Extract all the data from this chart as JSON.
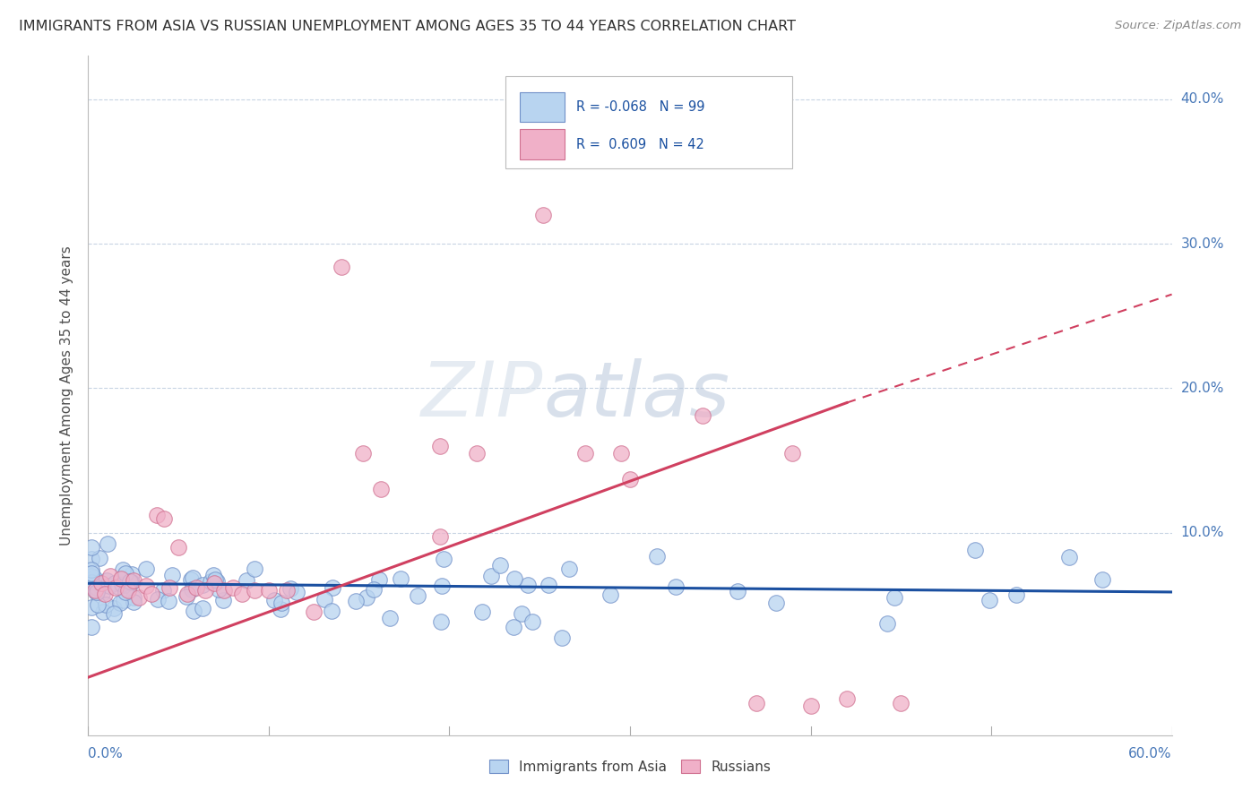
{
  "title": "IMMIGRANTS FROM ASIA VS RUSSIAN UNEMPLOYMENT AMONG AGES 35 TO 44 YEARS CORRELATION CHART",
  "source": "Source: ZipAtlas.com",
  "ylabel": "Unemployment Among Ages 35 to 44 years",
  "legend_bottom_asia": "Immigrants from Asia",
  "legend_bottom_russian": "Russians",
  "asia_face_color": "#b8d4f0",
  "asia_edge_color": "#7090c8",
  "russian_face_color": "#f0b0c8",
  "russian_edge_color": "#d07090",
  "asia_line_color": "#1a4fa0",
  "russian_line_color": "#d04060",
  "background_color": "#ffffff",
  "grid_color": "#c8d4e4",
  "title_color": "#303030",
  "axis_label_color": "#4878b8",
  "xlim": [
    0.0,
    0.6
  ],
  "ylim": [
    -0.04,
    0.43
  ],
  "ytick_values": [
    0.0,
    0.1,
    0.2,
    0.3,
    0.4
  ],
  "ytick_labels": [
    "",
    "10.0%",
    "20.0%",
    "30.0%",
    "40.0%"
  ],
  "xtick_positions": [
    0.0,
    0.1,
    0.2,
    0.3,
    0.4,
    0.5,
    0.6
  ],
  "asia_trend": [
    0.065,
    0.059
  ],
  "russian_trend_solid": [
    0.0,
    0.42,
    0.0,
    0.19
  ],
  "russian_trend_dash": [
    0.42,
    0.6,
    0.19,
    0.265
  ],
  "watermark_zip": "ZIP",
  "watermark_atlas": "atlas"
}
